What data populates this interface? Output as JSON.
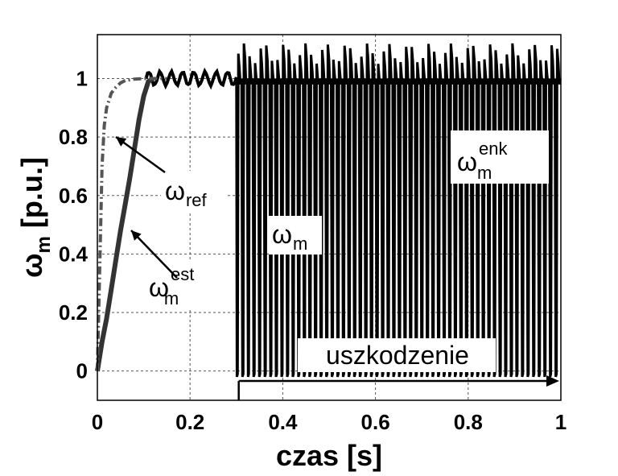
{
  "chart_data": {
    "type": "line",
    "xlabel": "czas [s]",
    "ylabel": {
      "main": "ω",
      "sub": "m",
      "unit": " [p.u.]"
    },
    "xlim": [
      0,
      1
    ],
    "ylim": [
      -0.1,
      1.15
    ],
    "xticks": [
      0,
      0.2,
      0.4,
      0.6,
      0.8,
      1
    ],
    "xtick_labels": [
      "0",
      "0.2",
      "0.4",
      "0.6",
      "0.8",
      "1"
    ],
    "yticks": [
      0,
      0.2,
      0.4,
      0.6,
      0.8,
      1
    ],
    "ytick_labels": [
      "0",
      "0.2",
      "0.4",
      "0.6",
      "0.8",
      "1"
    ],
    "grid": true,
    "series": [
      {
        "key": "ref",
        "style": "dash-dot",
        "color": "#555555",
        "x": [
          0,
          0.005,
          0.01,
          0.015,
          0.02,
          0.03,
          0.04,
          0.05,
          0.06,
          0.08,
          0.1,
          0.12,
          0.15
        ],
        "y": [
          0,
          0.35,
          0.7,
          0.84,
          0.9,
          0.95,
          0.97,
          0.985,
          0.993,
          0.998,
          1.0,
          1.0,
          1.0
        ]
      },
      {
        "key": "est",
        "style": "solid-thick",
        "color": "#333333",
        "x": [
          0,
          0.01,
          0.02,
          0.03,
          0.04,
          0.05,
          0.06,
          0.07,
          0.08,
          0.09,
          0.1,
          0.11,
          0.12
        ],
        "y": [
          0,
          0.1,
          0.18,
          0.28,
          0.38,
          0.48,
          0.57,
          0.66,
          0.76,
          0.86,
          0.94,
          0.99,
          1.0
        ]
      },
      {
        "key": "m",
        "style": "solid",
        "color": "#000000",
        "x_range": [
          0.105,
          0.3
        ],
        "mean": 1.0,
        "ripple": 0.025
      },
      {
        "key": "enk",
        "style": "solid",
        "color": "#000000",
        "x_range": [
          0.3,
          1.0
        ],
        "periods": 58,
        "low": -0.02,
        "high": [
          1.05,
          1.12
        ]
      }
    ],
    "annotations": [
      {
        "id": "ref",
        "main": "ω",
        "sub": "ref",
        "sup": ""
      },
      {
        "id": "est",
        "main": "ω",
        "sub": "m",
        "sup": "est"
      },
      {
        "id": "m",
        "main": "ω",
        "sub": "m",
        "sup": ""
      },
      {
        "id": "enk",
        "main": "ω",
        "sub": "m",
        "sup": "enk"
      },
      {
        "id": "fault",
        "text": "uszkodzenie",
        "x_start": 0.305,
        "x_end": 1.0
      }
    ]
  }
}
